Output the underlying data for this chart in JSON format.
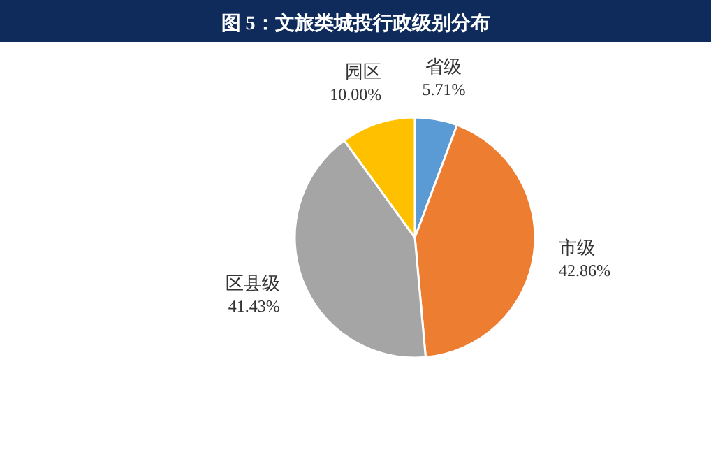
{
  "chart_data": {
    "type": "pie",
    "title": "图 5：文旅类城投行政级别分布",
    "categories": [
      "省级",
      "市级",
      "区县级",
      "园区"
    ],
    "values": [
      5.71,
      42.86,
      41.43,
      10.0
    ],
    "value_labels": [
      "5.71%",
      "42.86%",
      "41.43%",
      "10.00%"
    ],
    "colors": [
      "#5b9bd5",
      "#ed7d31",
      "#a5a5a5",
      "#ffc000"
    ]
  }
}
